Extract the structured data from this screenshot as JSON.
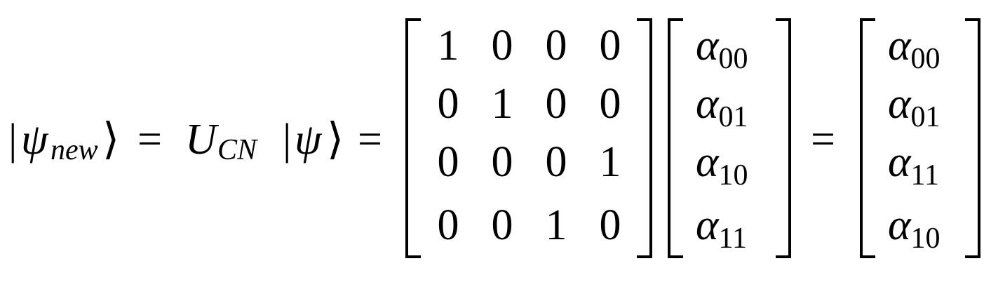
{
  "lhs": {
    "ket_open": "|",
    "psi": "ψ",
    "psi_subscript": "new",
    "ket_close": "⟩"
  },
  "eq1": "=",
  "operator": {
    "symbol": "U",
    "subscript": "CN",
    "ket_open": "|",
    "psi": "ψ",
    "ket_close": "⟩"
  },
  "eq2": "=",
  "matrix": [
    [
      "1",
      "0",
      "0",
      "0"
    ],
    [
      "0",
      "1",
      "0",
      "0"
    ],
    [
      "0",
      "0",
      "0",
      "1"
    ],
    [
      "0",
      "0",
      "1",
      "0"
    ]
  ],
  "input_vector": {
    "symbol": "α",
    "indices": [
      "00",
      "01",
      "10",
      "11"
    ]
  },
  "eq3": "=",
  "output_vector": {
    "symbol": "α",
    "indices": [
      "00",
      "01",
      "11",
      "10"
    ]
  }
}
